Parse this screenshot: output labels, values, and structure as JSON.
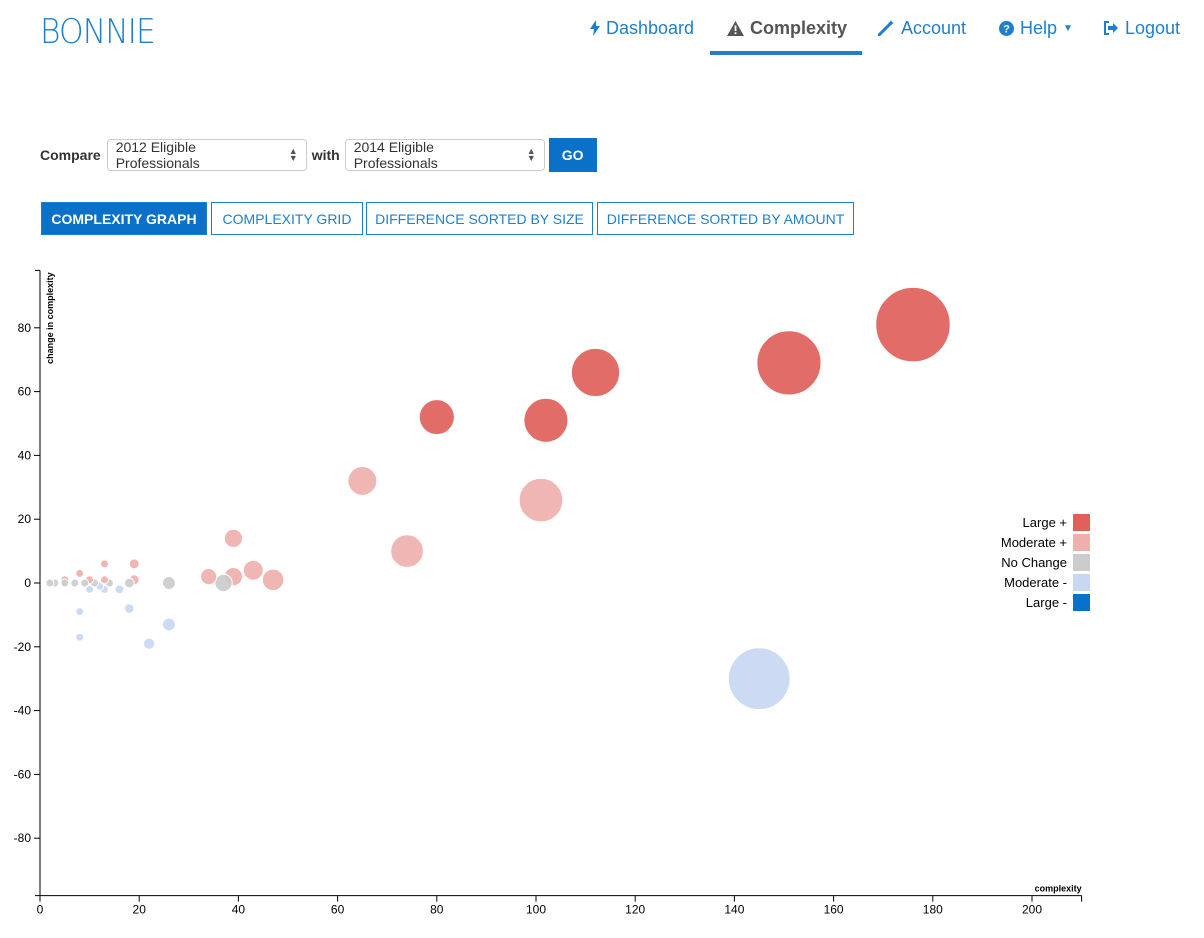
{
  "app": {
    "logo": "BONNIE"
  },
  "nav": {
    "items": [
      {
        "label": "Dashboard",
        "icon": "bolt-icon"
      },
      {
        "label": "Complexity",
        "icon": "warning-icon",
        "active": true
      },
      {
        "label": "Account",
        "icon": "magic-wand-icon"
      },
      {
        "label": "Help",
        "icon": "question-circle-icon",
        "dropdown": true
      },
      {
        "label": "Logout",
        "icon": "logout-icon"
      }
    ]
  },
  "compare": {
    "label": "Compare",
    "first_value": "2012 Eligible Professionals",
    "with_label": "with",
    "second_value": "2014 Eligible Professionals",
    "go_label": "GO"
  },
  "tabs": [
    {
      "label": "COMPLEXITY GRAPH",
      "active": true
    },
    {
      "label": "COMPLEXITY GRID"
    },
    {
      "label": "DIFFERENCE SORTED BY SIZE"
    },
    {
      "label": "DIFFERENCE SORTED BY AMOUNT"
    }
  ],
  "colors": {
    "accent": "#1f7fcc",
    "large_plus": "#e0605a",
    "moderate_plus": "#efb0ad",
    "no_change": "#cccccc",
    "moderate_minus": "#c8d8f2",
    "large_minus": "#0a70c8"
  },
  "chart_data": {
    "type": "scatter",
    "xlabel": "complexity",
    "ylabel": "change in complexity",
    "xlim": [
      0,
      210
    ],
    "ylim": [
      -98,
      98
    ],
    "xticks": [
      0,
      20,
      40,
      60,
      80,
      100,
      120,
      140,
      160,
      180,
      200
    ],
    "yticks": [
      -80,
      -60,
      -40,
      -20,
      0,
      20,
      40,
      60,
      80
    ],
    "legend": {
      "placement": "top-right",
      "entries": [
        {
          "name": "Large +",
          "key": "large_plus"
        },
        {
          "name": "Moderate +",
          "key": "moderate_plus"
        },
        {
          "name": "No Change",
          "key": "no_change"
        },
        {
          "name": "Moderate -",
          "key": "moderate_minus"
        },
        {
          "name": "Large -",
          "key": "large_minus"
        }
      ]
    },
    "points": [
      {
        "x": 176,
        "y": 81,
        "category": "large_plus"
      },
      {
        "x": 151,
        "y": 69,
        "category": "large_plus"
      },
      {
        "x": 112,
        "y": 66,
        "category": "large_plus"
      },
      {
        "x": 102,
        "y": 51,
        "category": "large_plus"
      },
      {
        "x": 80,
        "y": 52,
        "category": "large_plus"
      },
      {
        "x": 65,
        "y": 32,
        "category": "moderate_plus"
      },
      {
        "x": 101,
        "y": 26,
        "category": "moderate_plus"
      },
      {
        "x": 74,
        "y": 10,
        "category": "moderate_plus"
      },
      {
        "x": 39,
        "y": 14,
        "category": "moderate_plus"
      },
      {
        "x": 47,
        "y": 1,
        "category": "moderate_plus"
      },
      {
        "x": 43,
        "y": 4,
        "category": "moderate_plus"
      },
      {
        "x": 39,
        "y": 2,
        "category": "moderate_plus"
      },
      {
        "x": 34,
        "y": 2,
        "category": "moderate_plus"
      },
      {
        "x": 19,
        "y": 6,
        "category": "moderate_plus"
      },
      {
        "x": 19,
        "y": 1,
        "category": "moderate_plus"
      },
      {
        "x": 13,
        "y": 6,
        "category": "moderate_plus"
      },
      {
        "x": 13,
        "y": 1,
        "category": "moderate_plus"
      },
      {
        "x": 10,
        "y": 1,
        "category": "moderate_plus"
      },
      {
        "x": 8,
        "y": 3,
        "category": "moderate_plus"
      },
      {
        "x": 5,
        "y": 1,
        "category": "moderate_plus"
      },
      {
        "x": 37,
        "y": 0,
        "category": "no_change"
      },
      {
        "x": 26,
        "y": 0,
        "category": "no_change"
      },
      {
        "x": 18,
        "y": 0,
        "category": "no_change"
      },
      {
        "x": 14,
        "y": 0,
        "category": "no_change"
      },
      {
        "x": 11,
        "y": 0,
        "category": "no_change"
      },
      {
        "x": 9,
        "y": 0,
        "category": "no_change"
      },
      {
        "x": 7,
        "y": 0,
        "category": "no_change"
      },
      {
        "x": 5,
        "y": 0,
        "category": "no_change"
      },
      {
        "x": 3,
        "y": 0,
        "category": "no_change"
      },
      {
        "x": 2,
        "y": 0,
        "category": "no_change"
      },
      {
        "x": 145,
        "y": -30,
        "category": "moderate_minus"
      },
      {
        "x": 26,
        "y": -13,
        "category": "moderate_minus"
      },
      {
        "x": 22,
        "y": -19,
        "category": "moderate_minus"
      },
      {
        "x": 18,
        "y": -8,
        "category": "moderate_minus"
      },
      {
        "x": 16,
        "y": -2,
        "category": "moderate_minus"
      },
      {
        "x": 13,
        "y": -2,
        "category": "moderate_minus"
      },
      {
        "x": 12,
        "y": -1,
        "category": "moderate_minus"
      },
      {
        "x": 10,
        "y": -2,
        "category": "moderate_minus"
      },
      {
        "x": 8,
        "y": -9,
        "category": "moderate_minus"
      },
      {
        "x": 8,
        "y": -17,
        "category": "moderate_minus"
      }
    ]
  }
}
